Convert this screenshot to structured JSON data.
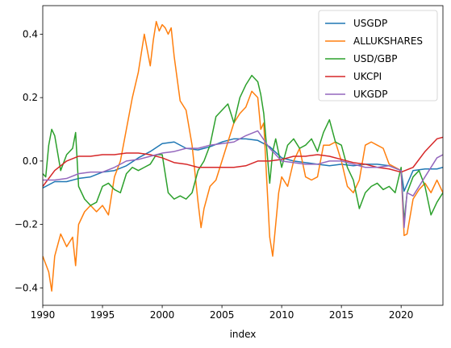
{
  "chart_data": {
    "type": "line",
    "title": "",
    "xlabel": "index",
    "ylabel": "",
    "xlim": [
      1990,
      2023.5
    ],
    "ylim": [
      -0.455,
      0.49
    ],
    "xticks": [
      1990,
      1995,
      2000,
      2005,
      2010,
      2015,
      2020
    ],
    "yticks": [
      -0.4,
      -0.2,
      0.0,
      0.2,
      0.4
    ],
    "xtick_labels": [
      "1990",
      "1995",
      "2000",
      "2005",
      "2010",
      "2015",
      "2020"
    ],
    "ytick_labels": [
      "−0.4",
      "−0.2",
      "0.0",
      "0.2",
      "0.4"
    ],
    "grid": false,
    "legend_position": "top-right",
    "series": [
      {
        "name": "USGDP",
        "color": "#1f77b4",
        "x": [
          1990,
          1991,
          1992,
          1993,
          1994,
          1995,
          1996,
          1997,
          1998,
          1999,
          2000,
          2001,
          2002,
          2003,
          2004,
          2005,
          2006,
          2007,
          2008,
          2009,
          2010,
          2011,
          2012,
          2013,
          2014,
          2015,
          2016,
          2017,
          2018,
          2019,
          2020,
          2020.25,
          2021,
          2022,
          2023,
          2023.5
        ],
        "y": [
          -0.085,
          -0.065,
          -0.065,
          -0.055,
          -0.05,
          -0.035,
          -0.03,
          -0.015,
          0.01,
          0.03,
          0.055,
          0.06,
          0.04,
          0.035,
          0.045,
          0.06,
          0.07,
          0.07,
          0.065,
          0.045,
          0.01,
          0.0,
          -0.005,
          -0.01,
          -0.015,
          -0.01,
          -0.015,
          -0.01,
          -0.01,
          -0.015,
          -0.03,
          -0.095,
          -0.03,
          -0.025,
          -0.025,
          -0.02
        ]
      },
      {
        "name": "ALLUKSHARES",
        "color": "#ff7f0e",
        "x": [
          1990,
          1990.5,
          1990.75,
          1991,
          1991.5,
          1992,
          1992.5,
          1992.75,
          1993,
          1993.5,
          1994,
          1994.5,
          1995,
          1995.5,
          1996,
          1996.5,
          1997,
          1997.5,
          1998,
          1998.25,
          1998.5,
          1998.75,
          1999,
          1999.25,
          1999.5,
          1999.75,
          2000,
          2000.25,
          2000.5,
          2000.75,
          2001,
          2001.5,
          2002,
          2002.5,
          2003,
          2003.25,
          2003.5,
          2004,
          2004.5,
          2005,
          2005.5,
          2006,
          2006.5,
          2007,
          2007.5,
          2008,
          2008.25,
          2008.5,
          2009,
          2009.25,
          2009.5,
          2009.75,
          2010,
          2010.5,
          2011,
          2011.5,
          2012,
          2012.5,
          2013,
          2013.5,
          2014,
          2014.5,
          2015,
          2015.5,
          2016,
          2016.5,
          2017,
          2017.5,
          2018,
          2018.5,
          2019,
          2019.5,
          2020,
          2020.25,
          2020.5,
          2021,
          2021.5,
          2022,
          2022.5,
          2023,
          2023.5
        ],
        "y": [
          -0.3,
          -0.35,
          -0.41,
          -0.3,
          -0.23,
          -0.27,
          -0.24,
          -0.33,
          -0.2,
          -0.16,
          -0.14,
          -0.16,
          -0.14,
          -0.17,
          -0.05,
          0.0,
          0.1,
          0.2,
          0.28,
          0.34,
          0.4,
          0.35,
          0.3,
          0.38,
          0.44,
          0.41,
          0.43,
          0.42,
          0.4,
          0.42,
          0.33,
          0.19,
          0.16,
          0.05,
          -0.13,
          -0.21,
          -0.15,
          -0.08,
          -0.06,
          0.0,
          0.06,
          0.12,
          0.15,
          0.17,
          0.22,
          0.2,
          0.1,
          0.12,
          -0.24,
          -0.3,
          -0.2,
          -0.1,
          -0.05,
          -0.08,
          0.0,
          0.04,
          -0.05,
          -0.06,
          -0.05,
          0.05,
          0.05,
          0.06,
          0.0,
          -0.08,
          -0.1,
          -0.06,
          0.05,
          0.06,
          0.05,
          0.04,
          -0.01,
          -0.02,
          -0.03,
          -0.235,
          -0.23,
          -0.12,
          -0.09,
          -0.07,
          -0.1,
          -0.06,
          -0.1
        ]
      },
      {
        "name": "USD/GBP",
        "color": "#2ca02c",
        "x": [
          1990,
          1990.25,
          1990.5,
          1990.75,
          1991,
          1991.5,
          1992,
          1992.5,
          1992.75,
          1993,
          1993.5,
          1994,
          1994.5,
          1995,
          1995.5,
          1996,
          1996.5,
          1997,
          1997.5,
          1998,
          1998.5,
          1999,
          1999.5,
          2000,
          2000.5,
          2001,
          2001.5,
          2002,
          2002.5,
          2003,
          2003.5,
          2004,
          2004.5,
          2005,
          2005.5,
          2006,
          2006.5,
          2007,
          2007.5,
          2008,
          2008.25,
          2008.5,
          2009,
          2009.25,
          2009.5,
          2010,
          2010.5,
          2011,
          2011.5,
          2012,
          2012.5,
          2013,
          2013.5,
          2014,
          2014.5,
          2015,
          2015.5,
          2016,
          2016.5,
          2017,
          2017.5,
          2018,
          2018.5,
          2019,
          2019.5,
          2020,
          2020.25,
          2020.5,
          2021,
          2021.5,
          2022,
          2022.5,
          2023,
          2023.5
        ],
        "y": [
          -0.04,
          -0.05,
          0.05,
          0.1,
          0.08,
          -0.03,
          0.02,
          0.04,
          0.09,
          -0.08,
          -0.12,
          -0.14,
          -0.13,
          -0.08,
          -0.07,
          -0.09,
          -0.1,
          -0.04,
          -0.02,
          -0.03,
          -0.02,
          -0.01,
          0.02,
          0.02,
          -0.1,
          -0.12,
          -0.11,
          -0.12,
          -0.1,
          -0.03,
          0.0,
          0.05,
          0.14,
          0.16,
          0.18,
          0.12,
          0.2,
          0.24,
          0.27,
          0.25,
          0.21,
          0.15,
          -0.07,
          0.03,
          0.07,
          -0.02,
          0.05,
          0.07,
          0.04,
          0.05,
          0.07,
          0.03,
          0.09,
          0.13,
          0.06,
          0.05,
          -0.02,
          -0.06,
          -0.15,
          -0.1,
          -0.08,
          -0.07,
          -0.09,
          -0.08,
          -0.1,
          -0.02,
          -0.19,
          -0.1,
          -0.05,
          -0.03,
          -0.08,
          -0.17,
          -0.13,
          -0.1
        ]
      },
      {
        "name": "UKCPI",
        "color": "#d62728",
        "x": [
          1990,
          1991,
          1992,
          1993,
          1994,
          1995,
          1996,
          1997,
          1998,
          1999,
          2000,
          2001,
          2002,
          2003,
          2004,
          2005,
          2006,
          2007,
          2008,
          2009,
          2010,
          2011,
          2012,
          2013,
          2014,
          2015,
          2016,
          2017,
          2018,
          2019,
          2020,
          2021,
          2022,
          2022.5,
          2023,
          2023.5
        ],
        "y": [
          -0.08,
          -0.03,
          0.0,
          0.015,
          0.015,
          0.02,
          0.02,
          0.025,
          0.025,
          0.02,
          0.01,
          -0.005,
          -0.01,
          -0.02,
          -0.02,
          -0.02,
          -0.02,
          -0.015,
          0.0,
          0.0,
          0.005,
          0.015,
          0.015,
          0.02,
          0.015,
          0.005,
          -0.005,
          -0.01,
          -0.02,
          -0.025,
          -0.035,
          -0.02,
          0.03,
          0.05,
          0.07,
          0.075
        ]
      },
      {
        "name": "UKGDP",
        "color": "#9467bd",
        "x": [
          1990,
          1991,
          1992,
          1993,
          1994,
          1995,
          1996,
          1997,
          1998,
          1999,
          2000,
          2001,
          2002,
          2003,
          2004,
          2005,
          2006,
          2007,
          2008,
          2009,
          2010,
          2011,
          2012,
          2013,
          2014,
          2015,
          2016,
          2017,
          2018,
          2019,
          2020,
          2020.25,
          2020.5,
          2021,
          2022,
          2023,
          2023.5
        ],
        "y": [
          -0.06,
          -0.06,
          -0.055,
          -0.04,
          -0.035,
          -0.035,
          -0.02,
          0.0,
          0.005,
          0.015,
          0.025,
          0.03,
          0.04,
          0.04,
          0.05,
          0.055,
          0.06,
          0.08,
          0.095,
          0.04,
          0.0,
          -0.005,
          -0.01,
          -0.01,
          0.0,
          0.0,
          -0.01,
          -0.02,
          -0.02,
          -0.015,
          -0.03,
          -0.21,
          -0.1,
          -0.11,
          -0.05,
          0.01,
          0.02
        ]
      }
    ]
  }
}
